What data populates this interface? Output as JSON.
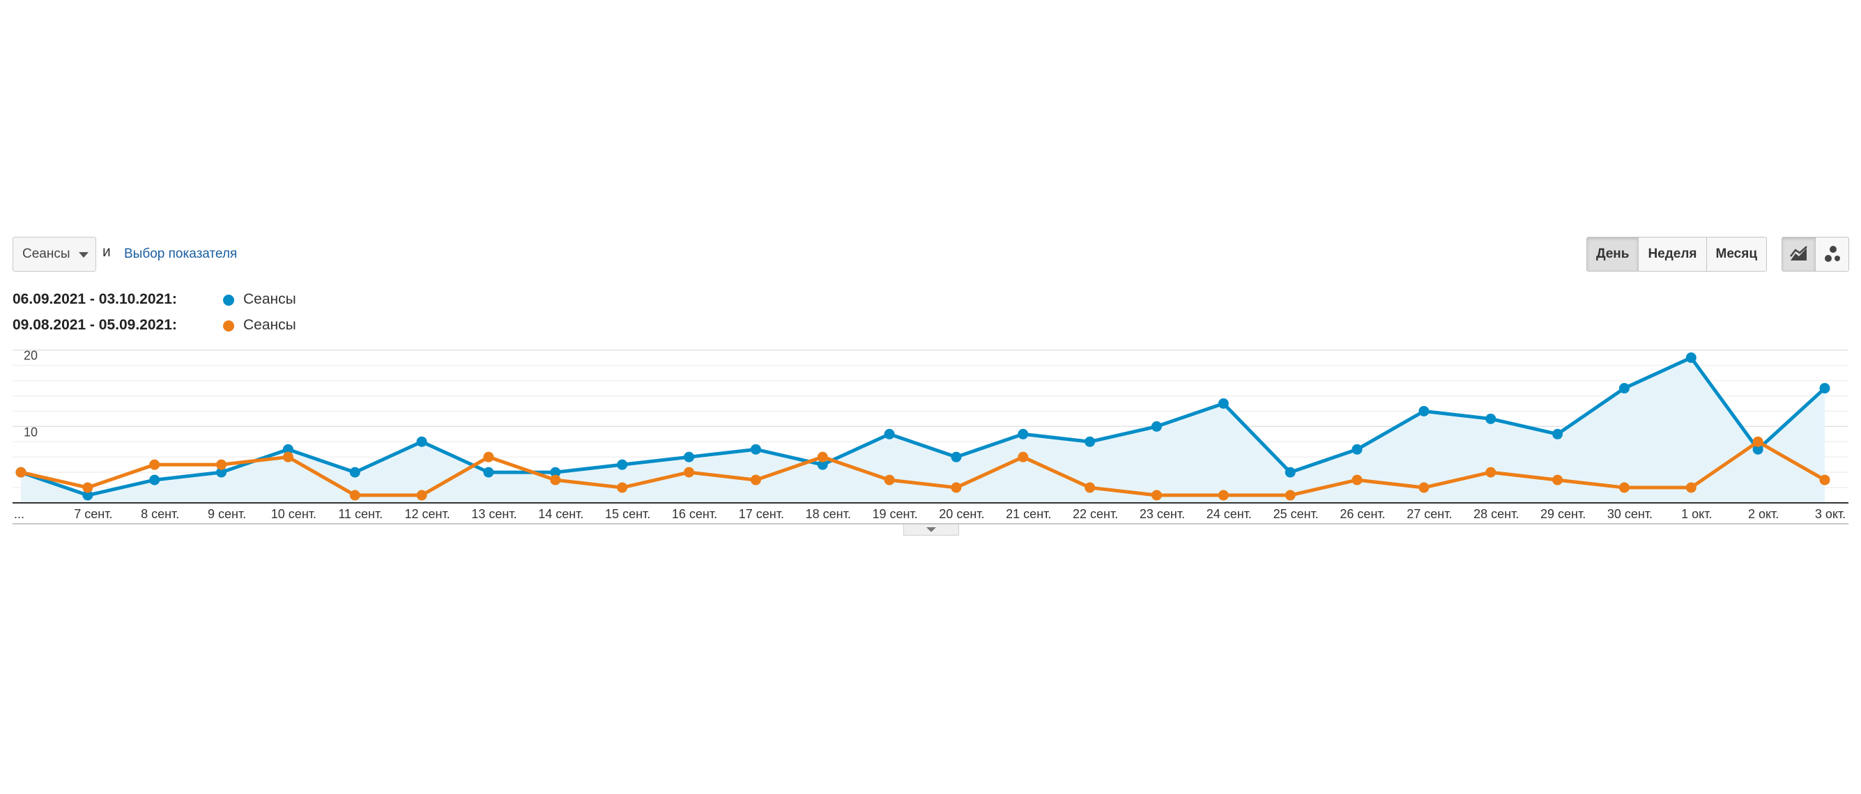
{
  "toolbar": {
    "metric_value": "Сеансы",
    "conjunction": "и",
    "pick_metric_label": "Выбор показателя",
    "periods": [
      "День",
      "Неделя",
      "Месяц"
    ],
    "active_period": "День",
    "view_icons": [
      "line-chart-icon",
      "motion-chart-icon"
    ]
  },
  "legend": [
    {
      "range": "06.09.2021 - 03.10.2021:",
      "name": "Сеансы",
      "color": "#058dc7"
    },
    {
      "range": "09.08.2021 - 05.09.2021:",
      "name": "Сеансы",
      "color": "#ed7e17"
    }
  ],
  "chart_data": {
    "type": "line",
    "title": "",
    "xlabel": "",
    "ylabel": "",
    "x": [
      "...",
      "7 сент.",
      "8 сент.",
      "9 сент.",
      "10 сент.",
      "11 сент.",
      "12 сент.",
      "13 сент.",
      "14 сент.",
      "15 сент.",
      "16 сент.",
      "17 сент.",
      "18 сент.",
      "19 сент.",
      "20 сент.",
      "21 сент.",
      "22 сент.",
      "23 сент.",
      "24 сент.",
      "25 сент.",
      "26 сент.",
      "27 сент.",
      "28 сент.",
      "29 сент.",
      "30 сент.",
      "1 окт.",
      "2 окт.",
      "3 окт."
    ],
    "yticks": [
      10,
      20
    ],
    "ylim": [
      0,
      20
    ],
    "grid": true,
    "series": [
      {
        "values": [
          4,
          1,
          3,
          4,
          7,
          4,
          8,
          4,
          4,
          5,
          6,
          7,
          5,
          9,
          6,
          9,
          8,
          10,
          13,
          4,
          7,
          12,
          11,
          9,
          15,
          19,
          7,
          15
        ],
        "color": "#058dc7",
        "fill": "#e6f4fa"
      },
      {
        "values": [
          4,
          2,
          5,
          5,
          6,
          1,
          1,
          6,
          3,
          2,
          4,
          3,
          6,
          3,
          2,
          6,
          2,
          1,
          1,
          1,
          3,
          2,
          4,
          3,
          2,
          2,
          8,
          3
        ],
        "color": "#ed7e17"
      }
    ]
  }
}
